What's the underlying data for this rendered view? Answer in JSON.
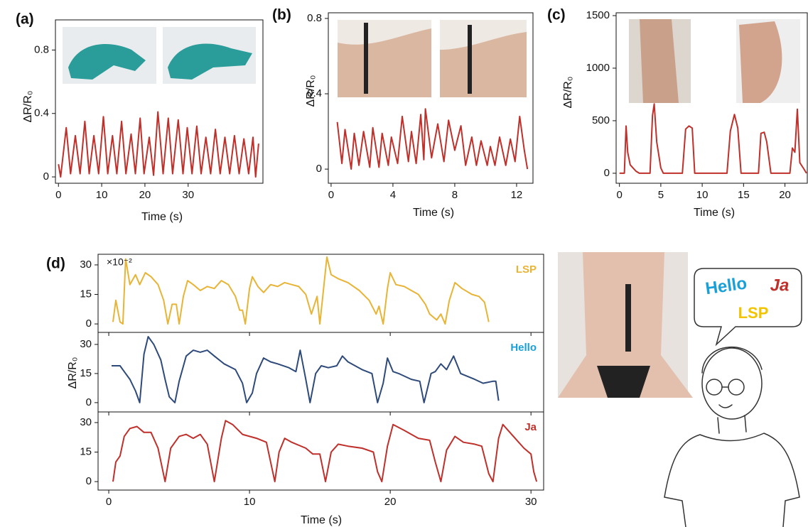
{
  "chart_data": [
    {
      "type": "line",
      "panel": "(a)",
      "ylabel": "ΔR/R₀",
      "xlabel": "Time (s)",
      "x": [
        0,
        0.5,
        1.8,
        2.8,
        3.9,
        5.0,
        6.1,
        7.1,
        8.2,
        9.3,
        10.4,
        11.4,
        12.5,
        13.5,
        14.6,
        15.6,
        16.8,
        17.8,
        18.9,
        19.8,
        21.0,
        22.0,
        23.0,
        24.2,
        25.4,
        26.4,
        27.7,
        28.8,
        29.8,
        30.9,
        32.0,
        33.0,
        34.1,
        35.2,
        36.3,
        37.4,
        38.5,
        39.6,
        40.7,
        41.8,
        42.9,
        44.0,
        45.0,
        45.6,
        46.3
      ],
      "series": [
        {
          "color": "#c0302b",
          "values": [
            0.08,
            0,
            0.31,
            0.02,
            0.26,
            0.02,
            0.35,
            0.02,
            0.26,
            0.02,
            0.38,
            0.02,
            0.26,
            0.02,
            0.35,
            0.02,
            0.27,
            0.02,
            0.37,
            0.02,
            0.25,
            0.01,
            0.41,
            0.02,
            0.37,
            0.02,
            0.36,
            0.02,
            0.31,
            0.02,
            0.32,
            0.02,
            0.25,
            0.02,
            0.3,
            0.02,
            0.25,
            0.02,
            0.26,
            0.02,
            0.24,
            0.02,
            0.25,
            0,
            0.21
          ]
        }
      ],
      "xlim": [
        -0.7,
        47.3
      ],
      "ylim": [
        -0.04,
        0.99
      ],
      "xticks": [
        0,
        10,
        20,
        30
      ],
      "yticks": [
        0,
        0.4,
        0.8
      ]
    },
    {
      "type": "line",
      "panel": "(b)",
      "ylabel": "ΔR/R₀",
      "xlabel": "Time (s)",
      "x": [
        0.4,
        0.7,
        0.9,
        1.3,
        1.5,
        1.8,
        2.1,
        2.5,
        2.7,
        3.1,
        3.3,
        3.7,
        3.9,
        4.3,
        4.6,
        5.0,
        5.2,
        5.5,
        5.8,
        6.0,
        6.1,
        6.5,
        6.9,
        7.3,
        7.6,
        8.0,
        8.4,
        8.7,
        9.1,
        9.4,
        9.7,
        10.1,
        10.3,
        10.6,
        10.9,
        11.3,
        11.6,
        11.9,
        12.2,
        12.5,
        12.7
      ],
      "series": [
        {
          "color": "#c0302b",
          "values": [
            0.25,
            0.03,
            0.21,
            0,
            0.19,
            0.02,
            0.2,
            0.01,
            0.22,
            0.01,
            0.19,
            0.02,
            0.17,
            0.03,
            0.28,
            0.04,
            0.2,
            0.03,
            0.29,
            0.05,
            0.32,
            0.06,
            0.24,
            0.04,
            0.26,
            0.1,
            0.23,
            0.02,
            0.17,
            0.02,
            0.15,
            0.02,
            0.12,
            0.02,
            0.17,
            0.02,
            0.16,
            0.04,
            0.28,
            0.1,
            0
          ]
        }
      ],
      "xlim": [
        -0.18,
        13.06
      ],
      "ylim": [
        -0.075,
        0.83
      ],
      "xticks": [
        0,
        4,
        8,
        12
      ],
      "yticks": [
        0,
        0.4,
        0.8
      ]
    },
    {
      "type": "line",
      "panel": "(c)",
      "ylabel": "ΔR/R₀",
      "xlabel": "Time (s)",
      "x": [
        0,
        0.6,
        0.8,
        1.0,
        1.3,
        2.0,
        2.4,
        3.7,
        4.0,
        4.2,
        4.5,
        5.0,
        5.3,
        7.6,
        8.0,
        8.4,
        8.8,
        9.1,
        13.0,
        13.4,
        13.9,
        14.3,
        14.7,
        16.8,
        17.1,
        17.5,
        17.8,
        18.3,
        20.6,
        20.9,
        21.2,
        21.5,
        21.8,
        22.3,
        22.6
      ],
      "series": [
        {
          "color": "#c0302b",
          "values": [
            0,
            0,
            450,
            200,
            80,
            20,
            0,
            0,
            550,
            660,
            300,
            50,
            0,
            0,
            420,
            450,
            430,
            0,
            0,
            400,
            560,
            430,
            0,
            0,
            380,
            390,
            300,
            0,
            0,
            240,
            200,
            610,
            100,
            40,
            0
          ]
        }
      ],
      "xlim": [
        -0.4,
        22.7
      ],
      "ylim": [
        -95,
        1527
      ],
      "xticks": [
        0,
        5,
        10,
        15,
        20
      ],
      "yticks": [
        0,
        500,
        1000,
        1500
      ]
    },
    {
      "type": "line",
      "panel": "(d)",
      "annotation": "×10⁻²",
      "x": [
        0.3,
        0.5,
        0.8,
        1.0,
        1.2,
        1.5,
        1.9,
        2.2,
        2.6,
        3.0,
        3.5,
        3.9,
        4.2,
        4.5,
        4.8,
        5.0,
        5.3,
        5.6,
        6.0,
        6.5,
        7.0,
        7.5,
        8.0,
        8.5,
        9.0,
        9.3,
        9.5,
        9.7,
        10.0,
        10.2,
        10.6,
        11.0,
        11.5,
        12.0,
        12.5,
        13.0,
        13.5,
        14.0,
        14.4,
        14.8,
        15.0,
        15.5,
        15.8,
        16.3,
        17.0,
        17.8,
        18.5,
        19.0,
        19.2,
        19.5,
        19.8,
        20.0,
        20.4,
        21.0,
        21.5,
        22.0,
        22.5,
        22.8,
        23.3,
        23.6,
        23.9,
        24.2,
        24.6,
        25.1,
        25.8,
        26.3,
        26.7,
        27.0
      ],
      "series": [
        {
          "name": "LSP",
          "color": "#e8b436",
          "label_color": "#e8b436",
          "values": [
            1,
            12,
            1,
            0,
            33,
            20,
            25,
            20,
            26,
            24,
            20,
            12,
            0,
            10,
            10,
            0,
            14,
            22,
            20,
            17,
            19,
            18,
            22,
            20,
            14,
            7,
            7,
            0,
            18,
            24,
            19,
            16,
            20,
            19,
            21,
            20,
            19,
            15,
            5,
            14,
            0,
            34,
            25,
            23,
            21,
            17,
            12,
            5,
            9,
            0,
            18,
            26,
            20,
            19,
            17,
            15,
            10,
            5,
            2,
            5,
            0,
            12,
            21,
            18,
            15,
            14,
            11,
            1
          ]
        }
      ],
      "xlim": [
        -0.76,
        30.9
      ],
      "ylim": [
        -4.3,
        35.4
      ],
      "xticks": [
        0,
        10,
        20,
        30
      ],
      "yticks": [
        0,
        15,
        30
      ]
    },
    {
      "type": "line",
      "ylabel": "ΔR/R₀",
      "x": [
        0.2,
        0.8,
        1.2,
        1.5,
        1.9,
        2.2,
        2.5,
        2.8,
        3.2,
        3.7,
        4.0,
        4.3,
        4.7,
        5.0,
        5.5,
        6.0,
        6.5,
        7.0,
        7.5,
        8.2,
        9.0,
        9.5,
        9.8,
        10.2,
        10.5,
        11.0,
        11.5,
        12.0,
        12.8,
        13.3,
        13.6,
        14.0,
        14.3,
        14.7,
        15.1,
        15.6,
        16.2,
        16.6,
        17.0,
        18.0,
        18.7,
        19.1,
        19.5,
        19.8,
        20.2,
        20.6,
        21.5,
        22.1,
        22.4,
        22.9,
        23.2,
        23.6,
        24.0,
        24.5,
        25.0,
        26.0,
        26.6,
        27.3,
        27.5,
        27.7
      ],
      "series": [
        {
          "name": "Hello",
          "color": "#2e4a7a",
          "label_color": "#1aa0d8",
          "values": [
            19,
            19,
            15,
            12,
            6,
            0,
            25,
            34,
            30,
            22,
            12,
            3,
            0,
            11,
            24,
            27,
            26,
            27,
            24,
            20,
            17,
            10,
            0,
            5,
            15,
            23,
            21,
            20,
            18,
            16,
            27,
            12,
            0,
            15,
            19,
            18,
            19,
            24,
            21,
            17,
            15,
            0,
            10,
            23,
            16,
            15,
            12,
            11,
            0,
            15,
            16,
            20,
            17,
            24,
            15,
            12,
            10,
            11,
            11,
            1
          ]
        }
      ],
      "xlim": [
        -0.76,
        30.9
      ],
      "ylim": [
        -4.8,
        36.2
      ],
      "xticks": [
        0,
        10,
        20,
        30
      ],
      "yticks": [
        0,
        15,
        30
      ]
    },
    {
      "type": "line",
      "xlabel": "Time (s)",
      "x": [
        0.3,
        0.5,
        0.8,
        1.1,
        1.5,
        2.0,
        2.5,
        3.0,
        3.5,
        4.0,
        4.4,
        5.0,
        5.5,
        6.0,
        6.5,
        7.0,
        7.5,
        8.0,
        8.3,
        8.8,
        9.5,
        10.5,
        11.2,
        11.5,
        11.8,
        12.1,
        12.5,
        13.0,
        14.0,
        14.5,
        15.0,
        15.4,
        15.8,
        16.3,
        17.0,
        18.0,
        18.8,
        19.1,
        19.4,
        19.8,
        20.2,
        21.0,
        22.0,
        22.8,
        23.2,
        23.6,
        24.0,
        24.6,
        25.2,
        26.0,
        26.5,
        27.0,
        27.3,
        27.7,
        28.0,
        28.5,
        29.0,
        29.5,
        30.0,
        30.2,
        30.4
      ],
      "series": [
        {
          "name": "Ja",
          "color": "#c0302b",
          "label_color": "#c0302b",
          "values": [
            0,
            10,
            13,
            23,
            27,
            28,
            25,
            25,
            17,
            0,
            17,
            23,
            24,
            22,
            24,
            19,
            0,
            22,
            31,
            29,
            24,
            22,
            20,
            10,
            0,
            15,
            22,
            20,
            17,
            14,
            14,
            0,
            15,
            19,
            18,
            17,
            15,
            5,
            0,
            18,
            29,
            26,
            22,
            21,
            10,
            0,
            16,
            23,
            20,
            19,
            18,
            4,
            0,
            22,
            29,
            25,
            21,
            17,
            14,
            5,
            0
          ]
        }
      ],
      "xlim": [
        -0.76,
        30.9
      ],
      "ylim": [
        -4.3,
        35.4
      ],
      "xticks": [
        0,
        10,
        20,
        30
      ],
      "yticks": [
        0,
        15,
        30
      ]
    }
  ],
  "illustration": {
    "speech": [
      "Hello",
      "Ja",
      "LSP"
    ]
  }
}
